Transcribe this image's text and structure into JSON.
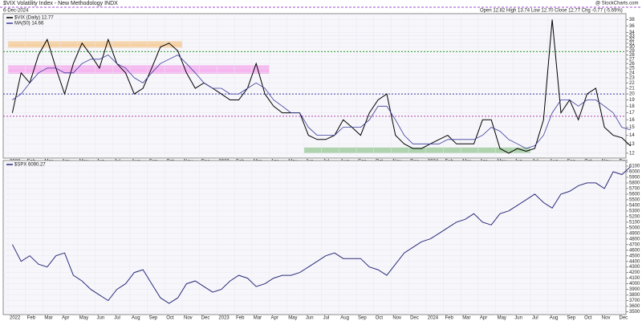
{
  "header": {
    "title": "$VIX Volatility Index - New Methodology INDX",
    "date": "6-Dec-2024",
    "quote": "Open 12.82 High 13.74 Low 12.70 Close 12.77 Chg -0.77 (-5.69%)",
    "credit": "@ StockCharts.com"
  },
  "chart_data": [
    {
      "type": "line",
      "log_scale": true,
      "grid": true,
      "categories": [
        "2022",
        null,
        "Feb",
        null,
        "Mar",
        null,
        "Apr",
        null,
        "May",
        null,
        "Jun",
        null,
        "Jul",
        null,
        "Aug",
        null,
        "Sep",
        null,
        "Oct",
        null,
        "Nov",
        null,
        "Dec",
        null,
        "2023",
        null,
        "Feb",
        null,
        "Mar",
        null,
        "Apr",
        null,
        "May",
        null,
        "Jun",
        null,
        "Jul",
        null,
        "Aug",
        null,
        "Sep",
        null,
        "Oct",
        null,
        "Nov",
        null,
        "Dec",
        null,
        "2024",
        null,
        "Feb",
        null,
        "Mar",
        null,
        "Apr",
        null,
        "May",
        null,
        "Jun",
        null,
        "Jul",
        null,
        "Aug",
        null,
        "Sep",
        null,
        "Oct",
        null,
        "Nov",
        null,
        "Dec",
        null
      ],
      "series": [
        {
          "name": "$VIX (Daily) 12.77",
          "color": "#000000",
          "values": [
            17,
            24,
            22,
            28,
            32,
            25,
            20,
            26,
            31,
            28,
            25,
            32,
            26,
            24,
            20,
            21,
            25,
            30,
            31,
            29,
            24,
            21,
            22,
            21,
            20,
            19,
            19,
            21,
            26,
            20,
            18,
            17,
            17,
            17,
            14,
            13.5,
            13.5,
            14,
            16,
            15,
            14,
            17,
            19,
            20,
            14,
            13,
            12.5,
            12.5,
            13,
            13.5,
            14,
            13,
            13,
            13,
            16,
            16,
            12.5,
            12,
            12.5,
            12.2,
            12.5,
            16,
            38,
            17,
            19,
            16,
            20,
            21,
            15,
            14,
            13.7,
            12.77
          ]
        },
        {
          "name": "MA(50) 14.66",
          "color": "#3a3a9a",
          "values": [
            19,
            20,
            22,
            24,
            25,
            25,
            24,
            24,
            26,
            27,
            27,
            28,
            26,
            25,
            23,
            22,
            24,
            26,
            27,
            28,
            26,
            24,
            22,
            21,
            21,
            20,
            20,
            21,
            22,
            21,
            19,
            18,
            17,
            17,
            15,
            14,
            14,
            14,
            15,
            15,
            15,
            16,
            18,
            18,
            16,
            14,
            13,
            13,
            13,
            13,
            13.5,
            13.5,
            13.5,
            13.5,
            14,
            15,
            14.5,
            13.5,
            13,
            12.5,
            12.8,
            14,
            17,
            19,
            19,
            18,
            19,
            19,
            18,
            17,
            15,
            14.66
          ]
        }
      ],
      "ylim": [
        11.5,
        40
      ],
      "yticks": [
        12,
        13,
        14,
        15,
        16,
        17,
        18,
        19,
        20,
        21,
        22,
        23,
        24,
        25,
        26,
        27,
        28,
        29,
        30,
        31,
        32,
        33,
        34,
        36,
        38
      ],
      "hlines": [
        {
          "value": 28.8,
          "color": "#2e9a2e"
        },
        {
          "value": 20,
          "color": "#3a3aaa"
        },
        {
          "value": 16.5,
          "color": "#b040b0"
        }
      ],
      "bands": [
        {
          "x_from": 0,
          "x_to": 20,
          "low": 29.8,
          "high": 31.5,
          "color": "#f5c68a"
        },
        {
          "x_from": 0,
          "x_to": 30,
          "low": 23.8,
          "high": 25.6,
          "color": "#f5a6ee"
        },
        {
          "x_from": 34,
          "x_to": 60,
          "low": 12,
          "high": 12.6,
          "color": "#9cc99c"
        }
      ]
    },
    {
      "type": "line",
      "log_scale": false,
      "grid": true,
      "categories": [
        "2022",
        null,
        "Feb",
        null,
        "Mar",
        null,
        "Apr",
        null,
        "May",
        null,
        "Jun",
        null,
        "Jul",
        null,
        "Aug",
        null,
        "Sep",
        null,
        "Oct",
        null,
        "Nov",
        null,
        "Dec",
        null,
        "2023",
        null,
        "Feb",
        null,
        "Mar",
        null,
        "Apr",
        null,
        "May",
        null,
        "Jun",
        null,
        "Jul",
        null,
        "Aug",
        null,
        "Sep",
        null,
        "Oct",
        null,
        "Nov",
        null,
        "Dec",
        null,
        "2024",
        null,
        "Feb",
        null,
        "Mar",
        null,
        "Apr",
        null,
        "May",
        null,
        "Jun",
        null,
        "Jul",
        null,
        "Aug",
        null,
        "Sep",
        null,
        "Oct",
        null,
        "Nov",
        null,
        "Dec",
        null
      ],
      "series": [
        {
          "name": "$SPX 6090.27",
          "color": "#2a2a7a",
          "values": [
            4700,
            4400,
            4500,
            4350,
            4300,
            4500,
            4550,
            4150,
            4050,
            3900,
            3800,
            3700,
            3900,
            4000,
            4200,
            4250,
            4000,
            3750,
            3650,
            3750,
            4000,
            4050,
            3950,
            3850,
            3900,
            4050,
            4150,
            4100,
            3950,
            4000,
            4100,
            4150,
            4150,
            4200,
            4300,
            4400,
            4500,
            4550,
            4450,
            4450,
            4450,
            4300,
            4250,
            4150,
            4350,
            4550,
            4650,
            4750,
            4800,
            4900,
            5000,
            5100,
            5150,
            5250,
            5100,
            5050,
            5250,
            5300,
            5400,
            5500,
            5600,
            5450,
            5350,
            5600,
            5650,
            5750,
            5800,
            5800,
            5700,
            6000,
            5950,
            6090.27
          ]
        }
      ],
      "ylim": [
        3450,
        6200
      ],
      "yticks": [
        3500,
        3600,
        3700,
        3800,
        3900,
        4000,
        4100,
        4200,
        4300,
        4400,
        4500,
        4600,
        4700,
        4800,
        4900,
        5000,
        5100,
        5200,
        5300,
        5400,
        5500,
        5600,
        5700,
        5800,
        5900,
        6000,
        6100
      ]
    }
  ]
}
